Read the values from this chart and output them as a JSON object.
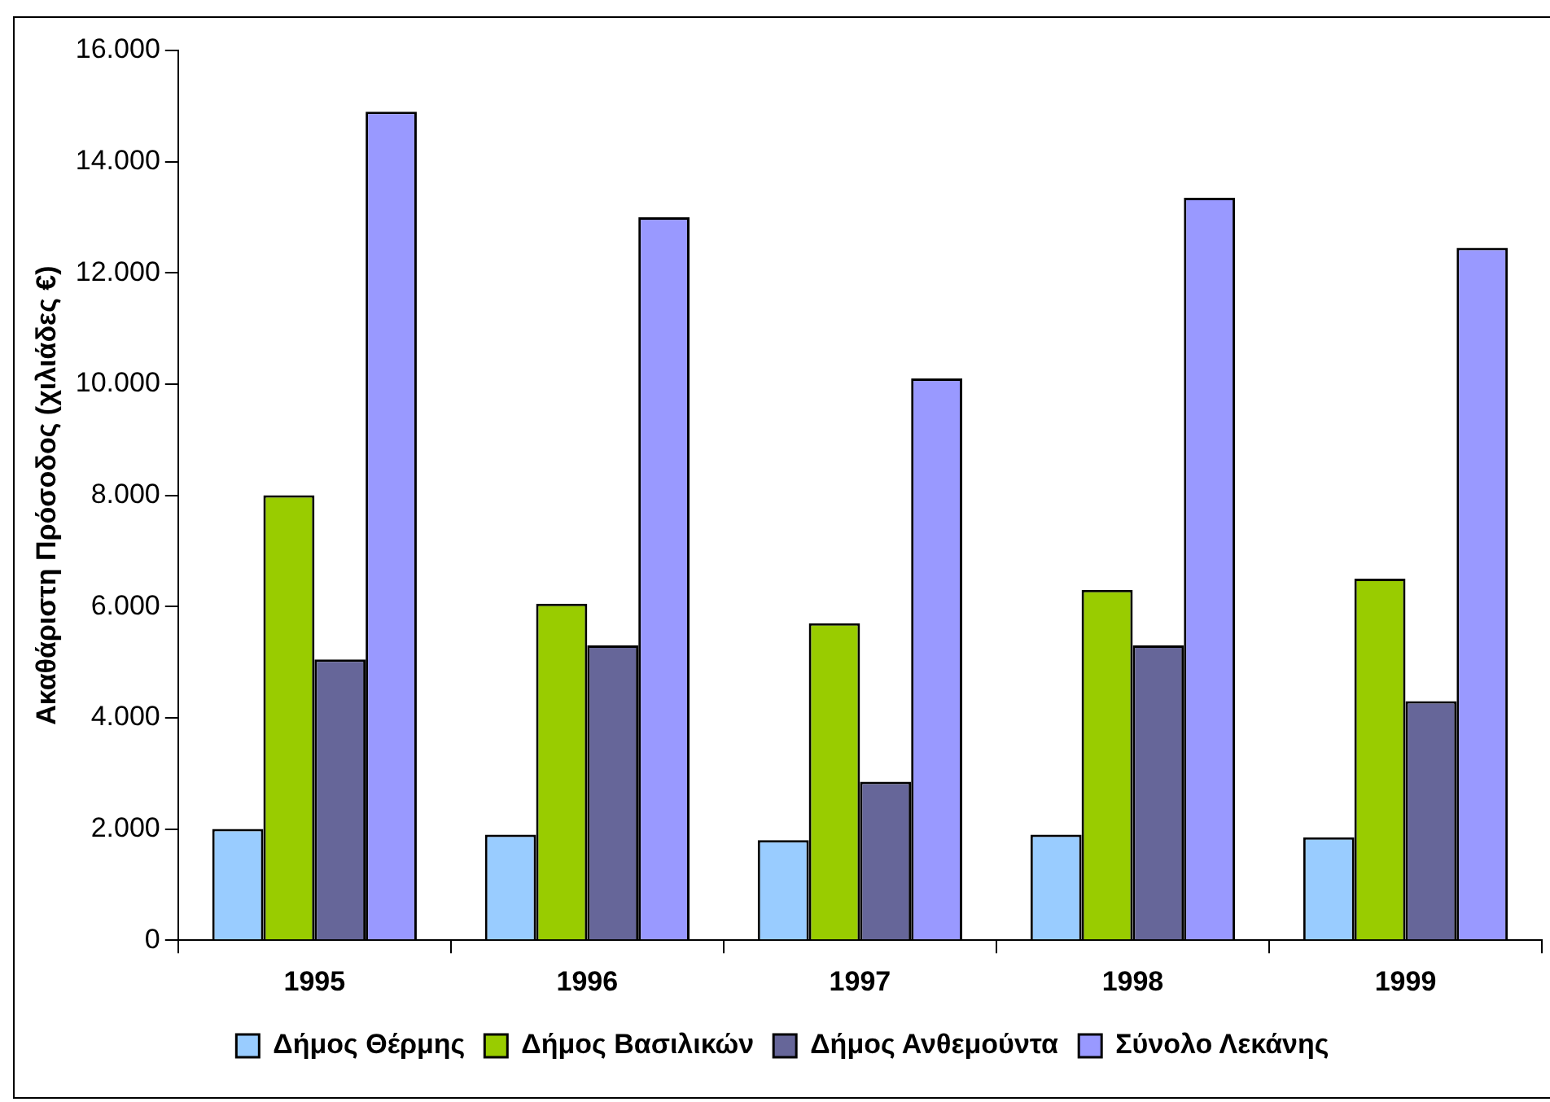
{
  "chart_data": {
    "type": "bar",
    "ylabel": "Ακαθάριστη Πρόσοδος (χιλιάδες €)",
    "categories": [
      "1995",
      "1996",
      "1997",
      "1998",
      "1999"
    ],
    "series": [
      {
        "name": "Δήμος Θέρμης",
        "color": "#99ccff",
        "values": [
          2000,
          1900,
          1800,
          1900,
          1850
        ]
      },
      {
        "name": "Δήμος Βασιλικών",
        "color": "#99cc00",
        "values": [
          8000,
          6050,
          5700,
          6300,
          6500
        ]
      },
      {
        "name": "Δήμος Ανθεμούντα",
        "color": "#666699",
        "values": [
          5050,
          5300,
          2850,
          5300,
          4300
        ]
      },
      {
        "name": "Σύνολο Λεκάνης",
        "color": "#9999ff",
        "values": [
          14900,
          13000,
          10100,
          13350,
          12450
        ]
      }
    ],
    "ylim": [
      0,
      16000
    ],
    "yticks": [
      {
        "value": 0,
        "label": "0"
      },
      {
        "value": 2000,
        "label": "2.000"
      },
      {
        "value": 4000,
        "label": "4.000"
      },
      {
        "value": 6000,
        "label": "6.000"
      },
      {
        "value": 8000,
        "label": "8.000"
      },
      {
        "value": 10000,
        "label": "10.000"
      },
      {
        "value": 12000,
        "label": "12.000"
      },
      {
        "value": 14000,
        "label": "14.000"
      },
      {
        "value": 16000,
        "label": "16.000"
      }
    ],
    "grid": false,
    "legend": "bottom"
  }
}
